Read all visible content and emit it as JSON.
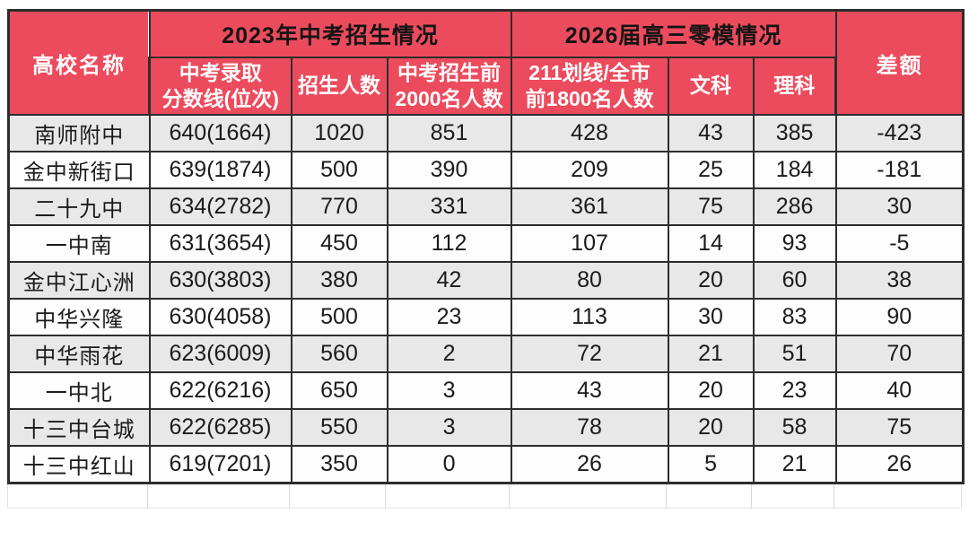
{
  "colors": {
    "header_red": "#ec4b5d",
    "header_text_white": "#ffffff",
    "group_title_text": "#141414",
    "grid_border": "#2e2c2c",
    "row_shade": "#e9e8e8",
    "row_plain": "#fdfdfd"
  },
  "table": {
    "corner": "高校名称",
    "group_2023": "2023年中考招生情况",
    "group_2026": "2026届高三零模情况",
    "diff": "差额",
    "subheaders": {
      "zhongkao_line": "中考录取\n分数线(位次)",
      "enrollment": "招生人数",
      "top2000": "中考招生前\n2000名人数",
      "line211": "211划线/全市\n前1800名人数",
      "liberal": "文科",
      "science": "理科"
    }
  },
  "chart_data": {
    "type": "table",
    "title": "",
    "columns": [
      "高校名称",
      "中考录取分数线(位次)",
      "招生人数",
      "中考招生前2000名人数",
      "211划线/全市前1800名人数",
      "文科",
      "理科",
      "差额"
    ],
    "column_groups": [
      {
        "title": "2023年中考招生情况",
        "span_columns": [
          "中考录取分数线(位次)",
          "招生人数",
          "中考招生前2000名人数"
        ]
      },
      {
        "title": "2026届高三零模情况",
        "span_columns": [
          "211划线/全市前1800名人数",
          "文科",
          "理科"
        ]
      }
    ],
    "rows": [
      [
        "南师附中",
        "640(1664)",
        "1020",
        "851",
        "428",
        "43",
        "385",
        "-423"
      ],
      [
        "金中新街口",
        "639(1874)",
        "500",
        "390",
        "209",
        "25",
        "184",
        "-181"
      ],
      [
        "二十九中",
        "634(2782)",
        "770",
        "331",
        "361",
        "75",
        "286",
        "30"
      ],
      [
        "一中南",
        "631(3654)",
        "450",
        "112",
        "107",
        "14",
        "93",
        "-5"
      ],
      [
        "金中江心洲",
        "630(3803)",
        "380",
        "42",
        "80",
        "20",
        "60",
        "38"
      ],
      [
        "中华兴隆",
        "630(4058)",
        "500",
        "23",
        "113",
        "30",
        "83",
        "90"
      ],
      [
        "中华雨花",
        "623(6009)",
        "560",
        "2",
        "72",
        "21",
        "51",
        "70"
      ],
      [
        "一中北",
        "622(6216)",
        "650",
        "3",
        "43",
        "20",
        "23",
        "40"
      ],
      [
        "十三中台城",
        "622(6285)",
        "550",
        "3",
        "78",
        "20",
        "58",
        "75"
      ],
      [
        "十三中红山",
        "619(7201)",
        "350",
        "0",
        "26",
        "5",
        "21",
        "26"
      ]
    ]
  }
}
